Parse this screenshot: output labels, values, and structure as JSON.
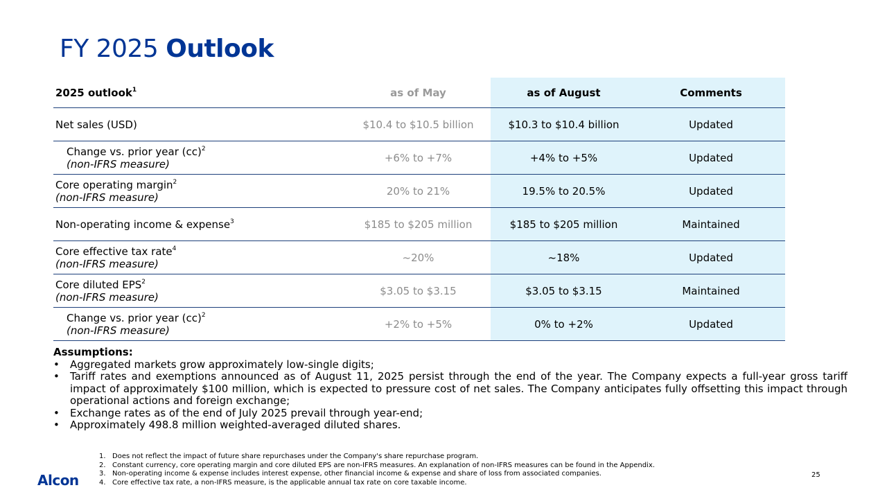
{
  "title": {
    "prefix": "FY 2025",
    "bold": "Outlook"
  },
  "table": {
    "headers": {
      "c1": "2025 outlook",
      "c1_sup": "1",
      "may": "as of May",
      "aug": "as of August",
      "comments": "Comments"
    },
    "rows": [
      {
        "label": "Net sales (USD)",
        "sup": "",
        "sub": "",
        "may": "$10.4 to $10.5 billion",
        "aug": "$10.3 to $10.4 billion",
        "comment": "Updated"
      },
      {
        "label": "Change vs. prior year (cc)",
        "sup": "2",
        "sub": "(non-IFRS measure)",
        "may": "+6% to +7%",
        "aug": "+4% to +5%",
        "comment": "Updated"
      },
      {
        "label": "Core operating margin",
        "sup": "2",
        "sub": "(non-IFRS measure)",
        "may": "20% to 21%",
        "aug": "19.5% to 20.5%",
        "comment": "Updated"
      },
      {
        "label": "Non-operating income & expense",
        "sup": "3",
        "sub": "",
        "may": "$185 to $205 million",
        "aug": "$185 to $205 million",
        "comment": "Maintained"
      },
      {
        "label": "Core effective tax rate",
        "sup": "4",
        "sub": "(non-IFRS measure)",
        "may": "~20%",
        "aug": "~18%",
        "comment": "Updated"
      },
      {
        "label": "Core diluted EPS",
        "sup": "2",
        "sub": "(non-IFRS measure)",
        "may": "$3.05 to $3.15",
        "aug": "$3.05 to $3.15",
        "comment": "Maintained"
      },
      {
        "label": "Change vs. prior year (cc)",
        "sup": "2",
        "sub": "(non-IFRS measure)",
        "may": "+2% to +5%",
        "aug": "0% to +2%",
        "comment": "Updated"
      }
    ]
  },
  "assumptions": {
    "heading": "Assumptions:",
    "bullet": "•",
    "items": [
      "Aggregated markets grow approximately low-single digits;",
      "Tariff rates and exemptions announced as of August 11, 2025 persist through the end of the year. The Company expects a full-year gross tariff impact of approximately $100 million, which is expected to pressure cost of net sales. The Company anticipates fully offsetting this impact through operational actions and foreign exchange;",
      "Exchange rates as of the end of July 2025 prevail through year-end;",
      "Approximately 498.8 million weighted-averaged diluted shares."
    ]
  },
  "footnotes": [
    {
      "num": "1.",
      "text": "Does not reflect the impact of future share repurchases under the Company's share repurchase program."
    },
    {
      "num": "2.",
      "text": "Constant currency, core operating margin and core diluted EPS are non-IFRS measures. An explanation of non-IFRS measures can be found in the Appendix."
    },
    {
      "num": "3.",
      "text": "Non-operating income & expense includes interest expense, other financial income & expense and share of loss from associated companies."
    },
    {
      "num": "4.",
      "text": "Core effective tax rate, a non-IFRS measure, is the applicable annual tax rate on core taxable income."
    }
  ],
  "logo": "Alcon",
  "page_number": "25",
  "colors": {
    "brand": "#003595",
    "highlight": "#dff3fb",
    "rule": "#1c3f7a",
    "muted": "#8c8c8c"
  }
}
